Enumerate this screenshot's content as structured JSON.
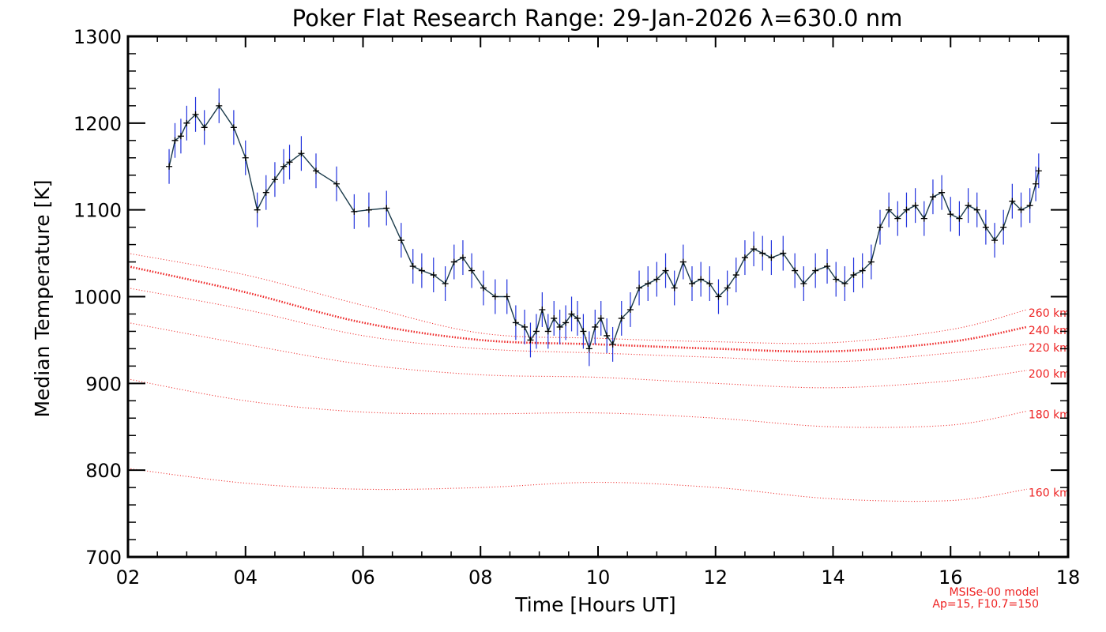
{
  "chart_data": {
    "type": "line",
    "title": "Poker Flat Research Range: 29-Jan-2026 λ=630.0 nm",
    "xlabel": "Time [Hours UT]",
    "ylabel": "Median Temperature [K]",
    "xlim": [
      2,
      18
    ],
    "ylim": [
      700,
      1300
    ],
    "x_ticks": [
      2,
      4,
      6,
      8,
      10,
      12,
      14,
      16,
      18
    ],
    "x_tick_labels": [
      "02",
      "04",
      "06",
      "08",
      "10",
      "12",
      "14",
      "16",
      "18"
    ],
    "y_ticks": [
      700,
      800,
      900,
      1000,
      1100,
      1200,
      1300
    ],
    "y_tick_labels": [
      "700",
      "800",
      "900",
      "1000",
      "1100",
      "1200",
      "1300"
    ],
    "grid": false,
    "note_lines": [
      "MSISe-00 model",
      "Ap=15, F10.7=150"
    ],
    "colors": {
      "measured": "#000000",
      "error_bars": "#2233dd",
      "model": "#ee2222"
    },
    "measured": {
      "x": [
        2.7,
        2.8,
        2.9,
        3.0,
        3.15,
        3.3,
        3.55,
        3.8,
        4.0,
        4.2,
        4.35,
        4.5,
        4.65,
        4.75,
        4.95,
        5.2,
        5.55,
        5.85,
        6.1,
        6.4,
        6.65,
        6.85,
        7.0,
        7.2,
        7.4,
        7.55,
        7.7,
        7.85,
        8.05,
        8.25,
        8.45,
        8.6,
        8.75,
        8.85,
        8.95,
        9.05,
        9.15,
        9.25,
        9.35,
        9.45,
        9.55,
        9.65,
        9.75,
        9.85,
        9.95,
        10.05,
        10.15,
        10.25,
        10.4,
        10.55,
        10.7,
        10.85,
        11.0,
        11.15,
        11.3,
        11.45,
        11.6,
        11.75,
        11.9,
        12.05,
        12.2,
        12.35,
        12.5,
        12.65,
        12.8,
        12.95,
        13.15,
        13.35,
        13.5,
        13.7,
        13.9,
        14.05,
        14.2,
        14.35,
        14.5,
        14.65,
        14.8,
        14.95,
        15.1,
        15.25,
        15.4,
        15.55,
        15.7,
        15.85,
        16.0,
        16.15,
        16.3,
        16.45,
        16.6,
        16.75,
        16.9,
        17.05,
        17.2,
        17.35,
        17.45,
        17.5
      ],
      "y": [
        1150,
        1180,
        1185,
        1200,
        1210,
        1195,
        1220,
        1195,
        1160,
        1100,
        1120,
        1135,
        1150,
        1155,
        1165,
        1145,
        1130,
        1098,
        1100,
        1102,
        1065,
        1035,
        1030,
        1025,
        1015,
        1040,
        1045,
        1030,
        1010,
        1000,
        1000,
        970,
        965,
        950,
        960,
        985,
        960,
        975,
        965,
        970,
        980,
        975,
        960,
        940,
        965,
        975,
        955,
        945,
        975,
        985,
        1010,
        1015,
        1020,
        1030,
        1010,
        1040,
        1015,
        1020,
        1015,
        1000,
        1010,
        1025,
        1045,
        1055,
        1050,
        1045,
        1050,
        1030,
        1015,
        1030,
        1035,
        1020,
        1015,
        1025,
        1030,
        1040,
        1080,
        1100,
        1090,
        1100,
        1105,
        1090,
        1115,
        1120,
        1095,
        1090,
        1105,
        1100,
        1080,
        1065,
        1080,
        1110,
        1100,
        1105,
        1130,
        1145
      ],
      "err": 20
    },
    "model_series": [
      {
        "name": "260 km",
        "x": [
          2,
          4,
          6,
          8,
          10,
          12,
          14,
          16,
          17.3
        ],
        "y": [
          1050,
          1025,
          990,
          958,
          952,
          948,
          947,
          962,
          985
        ],
        "emphasis": false
      },
      {
        "name": "240 km",
        "x": [
          2,
          4,
          6,
          8,
          10,
          12,
          14,
          16,
          17.3
        ],
        "y": [
          1035,
          1005,
          970,
          950,
          945,
          940,
          937,
          948,
          965
        ],
        "emphasis": true
      },
      {
        "name": "220 km",
        "x": [
          2,
          4,
          6,
          8,
          10,
          12,
          14,
          16,
          17.3
        ],
        "y": [
          1010,
          985,
          955,
          940,
          935,
          930,
          925,
          935,
          945
        ],
        "emphasis": false
      },
      {
        "name": "200 km",
        "x": [
          2,
          4,
          6,
          8,
          10,
          12,
          14,
          16,
          17.3
        ],
        "y": [
          970,
          945,
          922,
          910,
          907,
          900,
          895,
          903,
          915
        ],
        "emphasis": false
      },
      {
        "name": "180 km",
        "x": [
          2,
          4,
          6,
          8,
          10,
          12,
          14,
          16,
          17.3
        ],
        "y": [
          905,
          880,
          867,
          865,
          866,
          860,
          850,
          852,
          868
        ],
        "emphasis": false
      },
      {
        "name": "160 km",
        "x": [
          2,
          4,
          6,
          8,
          10,
          12,
          14,
          16,
          17.3
        ],
        "y": [
          802,
          785,
          778,
          780,
          786,
          780,
          767,
          765,
          778
        ],
        "emphasis": false
      }
    ]
  }
}
